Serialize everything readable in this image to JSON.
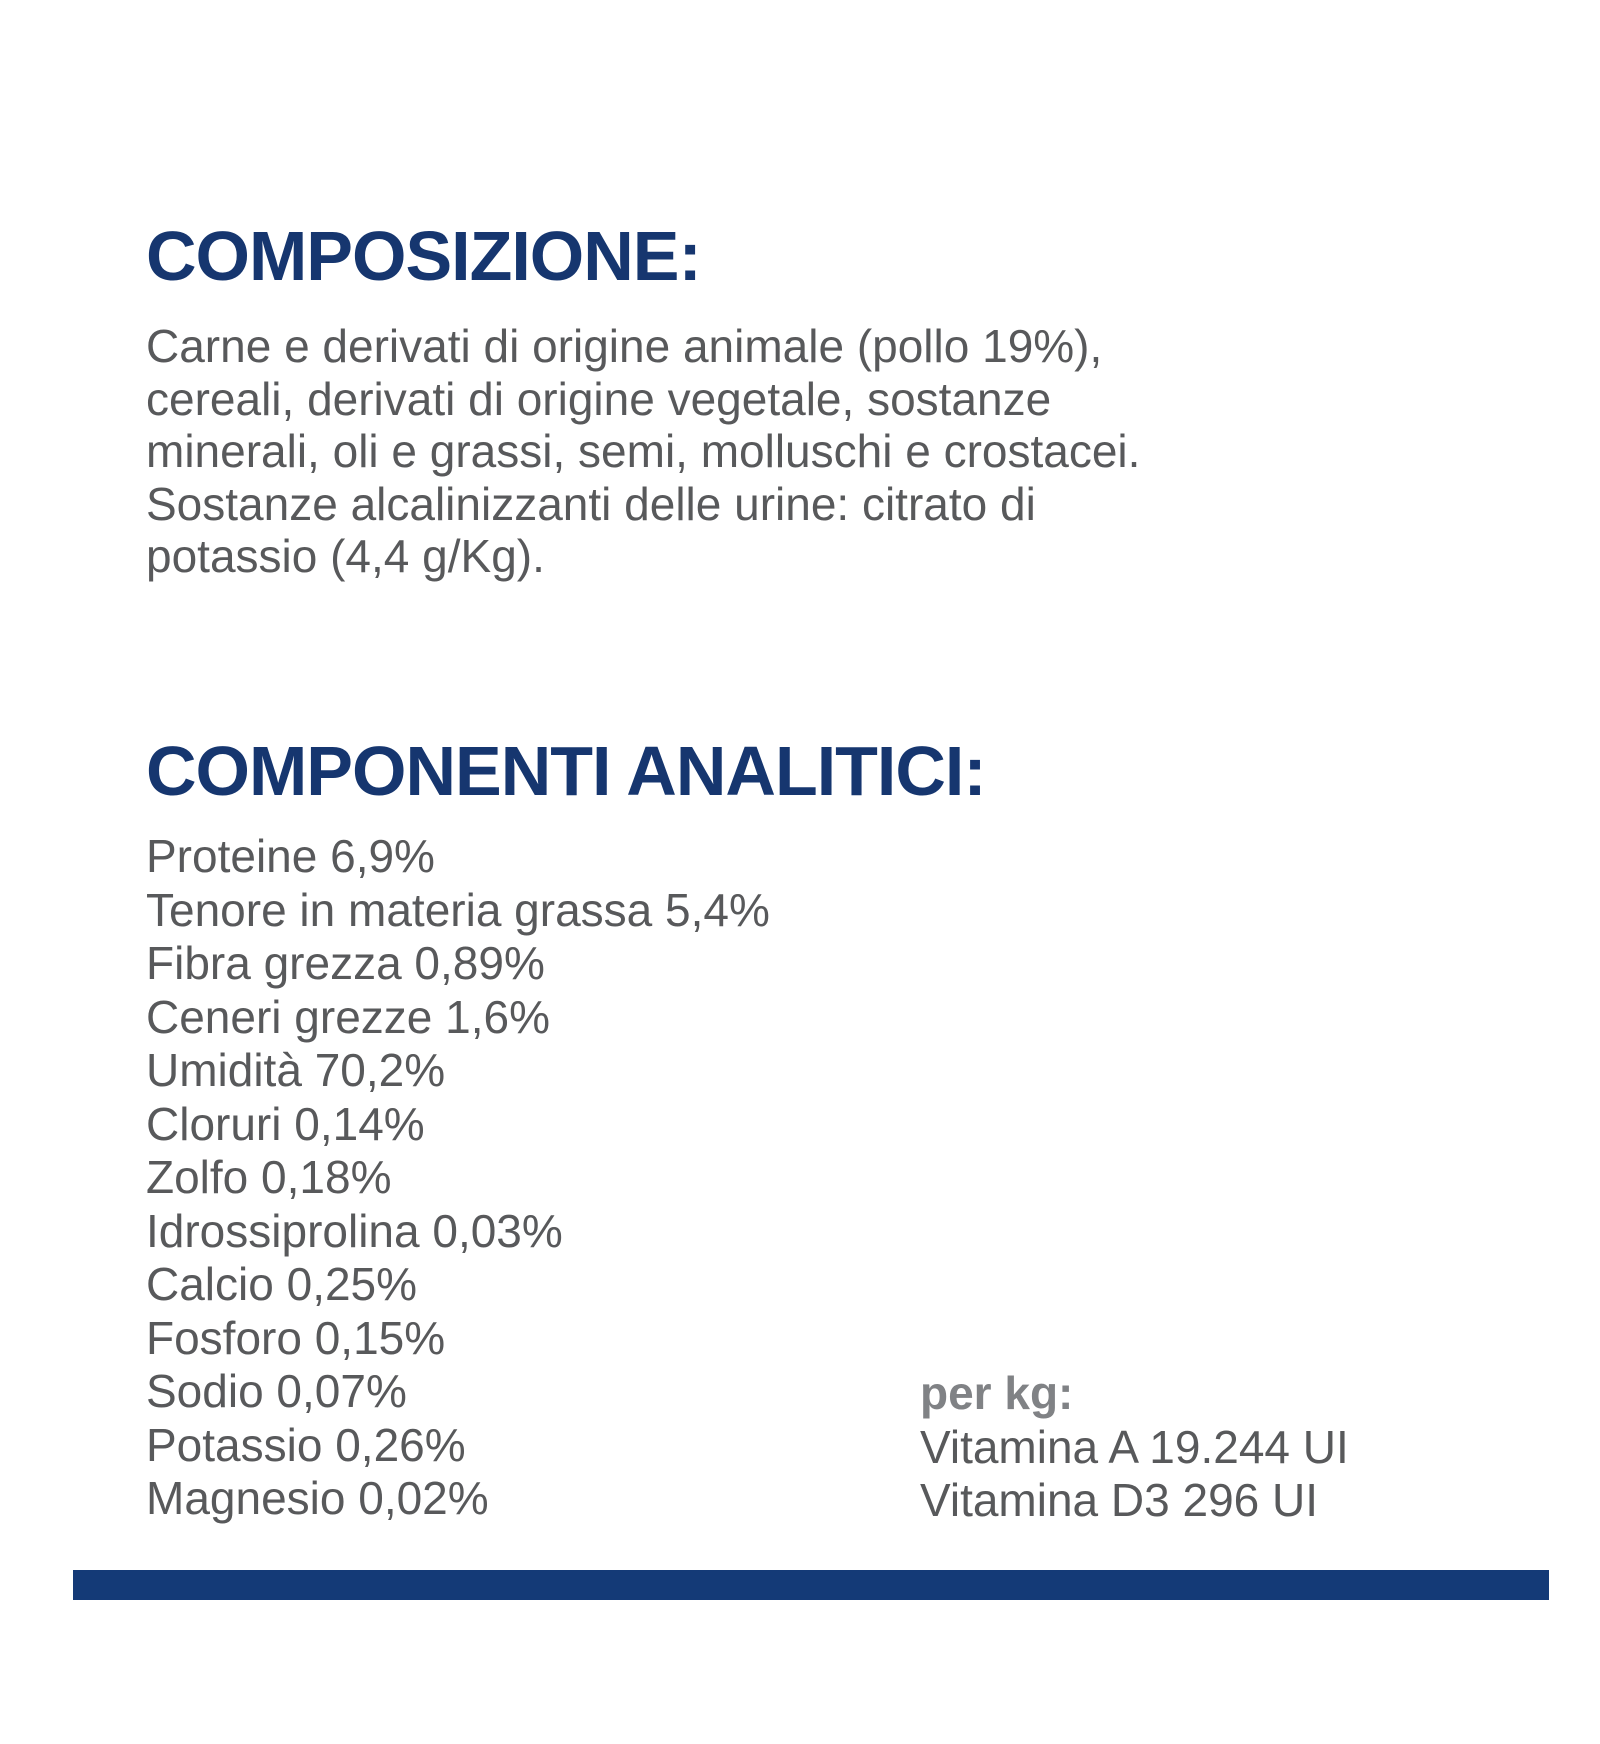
{
  "label": {
    "composition": {
      "title": "COMPOSIZIONE:",
      "lines": [
        "Carne e derivati di origine animale (pollo 19%),",
        "cereali, derivati di origine vegetale, sostanze",
        "minerali, oli e grassi, semi, molluschi e crostacei.",
        "Sostanze alcalinizzanti delle urine: citrato di",
        "potassio (4,4 g/Kg)."
      ]
    },
    "analytical": {
      "title": "COMPONENTI ANALITICI:",
      "items": [
        "Proteine 6,9%",
        "Tenore in materia grassa 5,4%",
        "Fibra grezza 0,89%",
        "Ceneri grezze 1,6%",
        "Umidità 70,2%",
        "Cloruri 0,14%",
        "Zolfo 0,18%",
        "Idrossiprolina 0,03%",
        "Calcio 0,25%",
        "Fosforo 0,15%",
        "Sodio 0,07%",
        "Potassio 0,26%",
        "Magnesio 0,02%"
      ]
    },
    "per_kg": {
      "label": "per kg:",
      "items": [
        "Vitamina A 19.244 UI",
        "Vitamina D3 296 UI"
      ]
    },
    "colors": {
      "heading_navy": "#16366f",
      "bar_navy": "#143a77",
      "body_gray": "#58595b",
      "per_kg_label_gray": "#808285"
    }
  }
}
